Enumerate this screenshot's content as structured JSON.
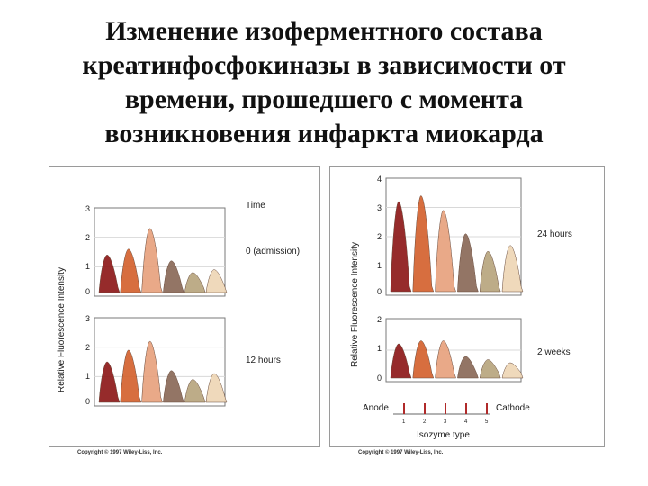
{
  "slide": {
    "title_lines": [
      "Изменение изоферментного состава",
      "креатинфосфокиназы в зависимости от",
      "времени, прошедшего с момента",
      "возникновения инфаркта миокарда"
    ]
  },
  "left_figure": {
    "ylabel": "Relative Fluorescence Intensity",
    "header": "Time",
    "copyright": "Copyright © 1997 Wiley-Liss, Inc.",
    "panels": [
      {
        "label": "0 (admission)",
        "ticks": [
          "3",
          "2",
          "1",
          "0"
        ],
        "ymax": 3
      },
      {
        "label": "12 hours",
        "ticks": [
          "3",
          "2",
          "1",
          "0"
        ],
        "ymax": 3
      }
    ]
  },
  "right_figure": {
    "ylabel": "Relative Fluorescence Intensity",
    "copyright": "Copyright © 1997 Wiley-Liss, Inc.",
    "panels": [
      {
        "label": "24 hours",
        "ticks": [
          "4",
          "3",
          "2",
          "1",
          "0"
        ],
        "ymax": 4
      },
      {
        "label": "2 weeks",
        "ticks": [
          "2",
          "1",
          "0"
        ],
        "ymax": 2
      }
    ],
    "anode_label": "Anode",
    "cathode_label": "Cathode",
    "lane_numbers": [
      "1",
      "2",
      "3",
      "4",
      "5"
    ],
    "xlabel": "Isozyme type"
  },
  "colors": [
    "#8e1a1a",
    "#d4622f",
    "#e8a27e",
    "#8a6a58",
    "#b8a57e",
    "#eed6b6"
  ],
  "chart_data": [
    {
      "type": "area",
      "title": "0 (admission)",
      "ylim": [
        0,
        3
      ],
      "series": [
        {
          "values": [
            1.4,
            1.6,
            2.3,
            1.2,
            0.8,
            0.9
          ]
        }
      ]
    },
    {
      "type": "area",
      "title": "12 hours",
      "ylim": [
        0,
        3
      ],
      "series": [
        {
          "values": [
            1.5,
            1.9,
            2.2,
            1.2,
            0.9,
            1.1
          ]
        }
      ]
    },
    {
      "type": "area",
      "title": "24 hours",
      "ylim": [
        0,
        4
      ],
      "series": [
        {
          "values": [
            3.2,
            3.4,
            2.9,
            2.1,
            1.5,
            1.7
          ]
        }
      ]
    },
    {
      "type": "area",
      "title": "2 weeks",
      "ylim": [
        0,
        2
      ],
      "series": [
        {
          "values": [
            1.2,
            1.3,
            1.3,
            0.8,
            0.7,
            0.6
          ]
        }
      ]
    }
  ]
}
